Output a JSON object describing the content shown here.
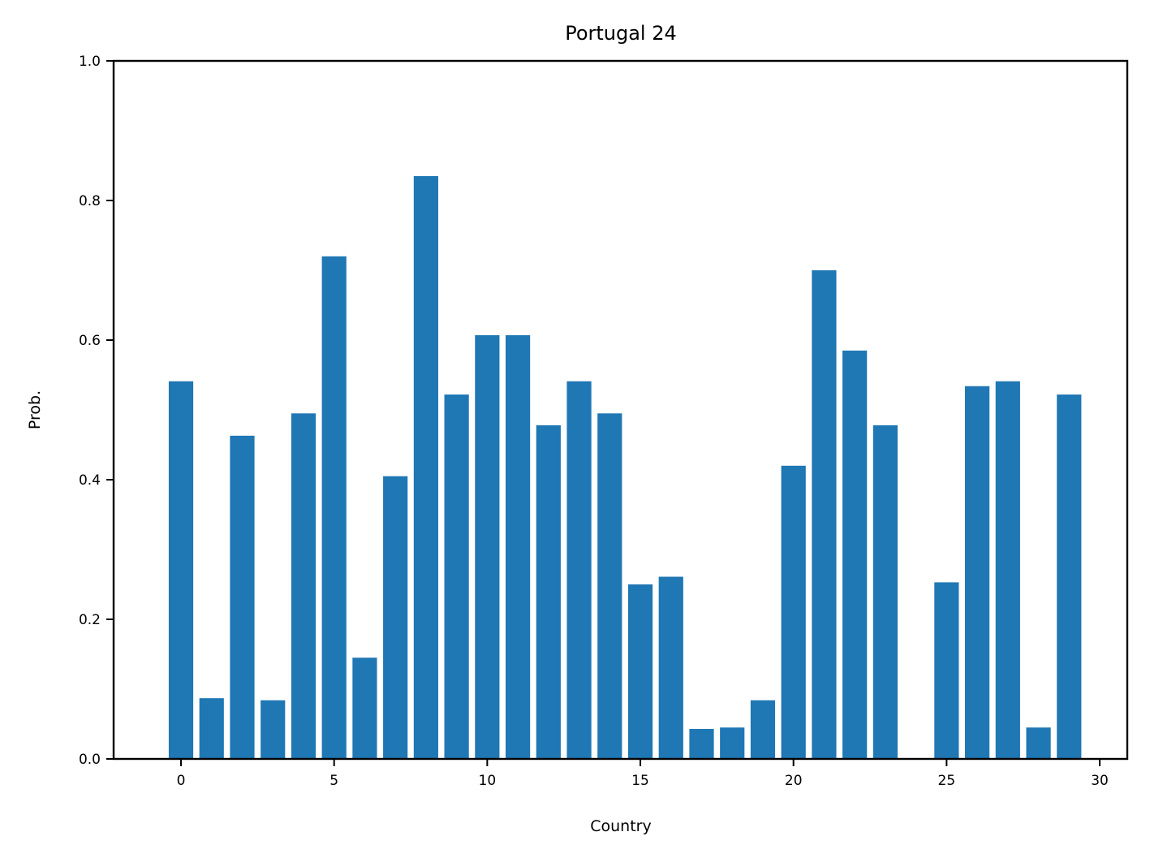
{
  "chart_data": {
    "type": "bar",
    "title": "Portugal 24",
    "xlabel": "Country",
    "ylabel": "Prob.",
    "x": [
      0,
      1,
      2,
      3,
      4,
      5,
      6,
      7,
      8,
      9,
      10,
      11,
      12,
      13,
      14,
      15,
      16,
      17,
      18,
      19,
      20,
      21,
      22,
      23,
      24,
      25,
      26,
      27,
      28,
      29
    ],
    "values": [
      0.541,
      0.087,
      0.463,
      0.084,
      0.495,
      0.72,
      0.145,
      0.405,
      0.835,
      0.522,
      0.607,
      0.607,
      0.478,
      0.541,
      0.495,
      0.25,
      0.261,
      0.043,
      0.045,
      0.084,
      0.42,
      0.7,
      0.585,
      0.478,
      0.0,
      0.253,
      0.534,
      0.541,
      0.045,
      0.522
    ],
    "xlim": [
      -2.2,
      30.9
    ],
    "ylim": [
      0,
      1.0
    ],
    "xticks": [
      0,
      5,
      10,
      15,
      20,
      25,
      30
    ],
    "yticks": [
      0.0,
      0.2,
      0.4,
      0.6,
      0.8,
      1.0
    ],
    "bar_color": "#1f77b4",
    "grid": false
  }
}
